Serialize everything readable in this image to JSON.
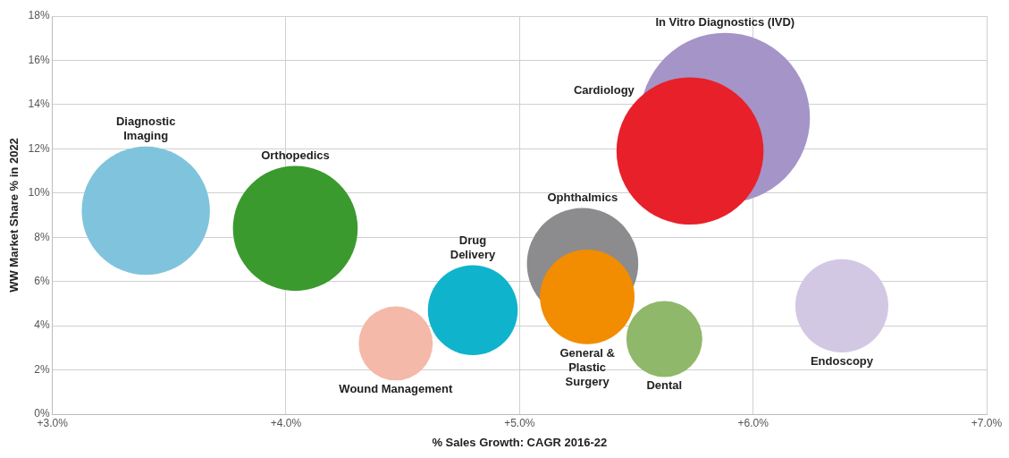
{
  "chart_data": {
    "type": "bubble",
    "xlabel": "% Sales Growth: CAGR 2016-22",
    "ylabel": "WW Market Share % in 2022",
    "xlim": [
      3,
      7
    ],
    "xticks": [
      {
        "value": 3,
        "label": "+3.0%"
      },
      {
        "value": 4,
        "label": "+4.0%"
      },
      {
        "value": 5,
        "label": "+5.0%"
      },
      {
        "value": 6,
        "label": "+6.0%"
      },
      {
        "value": 7,
        "label": "+7.0%"
      }
    ],
    "ylim": [
      0,
      18
    ],
    "yticks": [
      {
        "value": 0,
        "label": "0%"
      },
      {
        "value": 2,
        "label": "2%"
      },
      {
        "value": 4,
        "label": "4%"
      },
      {
        "value": 6,
        "label": "6%"
      },
      {
        "value": 8,
        "label": "8%"
      },
      {
        "value": 10,
        "label": "10%"
      },
      {
        "value": 12,
        "label": "12%"
      },
      {
        "value": 14,
        "label": "14%"
      },
      {
        "value": 16,
        "label": "16%"
      },
      {
        "value": 18,
        "label": "18%"
      }
    ],
    "grid": true,
    "series": [
      {
        "name": "Diagnostic Imaging",
        "color": "#7fc4dc",
        "x": [
          3.4
        ],
        "values": [
          9.2
        ],
        "sizes": [
          0.57
        ]
      },
      {
        "name": "Orthopedics",
        "color": "#3a9a2e",
        "x": [
          4.04
        ],
        "values": [
          8.4
        ],
        "sizes": [
          0.54
        ]
      },
      {
        "name": "Wound Management",
        "color": "#f4b9a8",
        "x": [
          4.47
        ],
        "values": [
          3.2
        ],
        "sizes": [
          0.19
        ]
      },
      {
        "name": "Drug Delivery",
        "color": "#10b3cc",
        "x": [
          4.8
        ],
        "values": [
          4.7
        ],
        "sizes": [
          0.28
        ]
      },
      {
        "name": "Ophthalmics",
        "color": "#8c8c8e",
        "x": [
          5.27
        ],
        "values": [
          6.8
        ],
        "sizes": [
          0.43
        ]
      },
      {
        "name": "General & Plastic Surgery",
        "color": "#f28c00",
        "x": [
          5.29
        ],
        "values": [
          5.3
        ],
        "sizes": [
          0.31
        ]
      },
      {
        "name": "Dental",
        "color": "#8fb86a",
        "x": [
          5.62
        ],
        "values": [
          3.4
        ],
        "sizes": [
          0.2
        ]
      },
      {
        "name": "Endoscopy",
        "color": "#d3c8e4",
        "x": [
          6.38
        ],
        "values": [
          4.9
        ],
        "sizes": [
          0.3
        ]
      },
      {
        "name": "In Vitro Diagnostics (IVD)",
        "color": "#a594c8",
        "x": [
          5.88
        ],
        "values": [
          13.4
        ],
        "sizes": [
          1
        ]
      },
      {
        "name": "Cardiology",
        "color": "#e8202a",
        "x": [
          5.73
        ],
        "values": [
          11.9
        ],
        "sizes": [
          0.75
        ]
      }
    ]
  }
}
